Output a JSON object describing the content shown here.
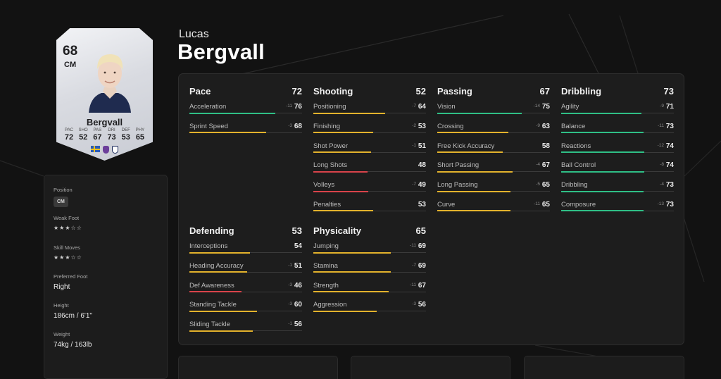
{
  "player": {
    "first_name": "Lucas",
    "last_name": "Bergvall"
  },
  "card": {
    "rating": "68",
    "position": "CM",
    "name": "Bergvall",
    "stats": [
      {
        "label": "PAC",
        "value": "72"
      },
      {
        "label": "SHO",
        "value": "52"
      },
      {
        "label": "PAS",
        "value": "67"
      },
      {
        "label": "DRI",
        "value": "73"
      },
      {
        "label": "DEF",
        "value": "53"
      },
      {
        "label": "PHY",
        "value": "65"
      }
    ],
    "icons": [
      "sweden-flag-icon",
      "premier-league-icon",
      "tottenham-crest-icon"
    ]
  },
  "info": {
    "position_label": "Position",
    "position_value": "CM",
    "weak_foot_label": "Weak Foot",
    "weak_foot_stars": "★★★☆☆",
    "skill_moves_label": "Skill Moves",
    "skill_moves_stars": "★★★☆☆",
    "preferred_foot_label": "Preferred Foot",
    "preferred_foot_value": "Right",
    "height_label": "Height",
    "height_value": "186cm / 6'1\"",
    "weight_label": "Weight",
    "weight_value": "74kg / 163lb"
  },
  "colors": {
    "green": "#2fbf86",
    "yellow": "#e3b22c",
    "red": "#d9434a",
    "track": "#3a3a3a"
  },
  "groups": [
    {
      "name": "Pace",
      "value": "72",
      "attrs": [
        {
          "name": "Acceleration",
          "delta": "-11",
          "value": 76
        },
        {
          "name": "Sprint Speed",
          "delta": "-3",
          "value": 68
        }
      ]
    },
    {
      "name": "Shooting",
      "value": "52",
      "attrs": [
        {
          "name": "Positioning",
          "delta": "-7",
          "value": 64
        },
        {
          "name": "Finishing",
          "delta": "-2",
          "value": 53
        },
        {
          "name": "Shot Power",
          "delta": "-1",
          "value": 51
        },
        {
          "name": "Long Shots",
          "delta": "",
          "value": 48
        },
        {
          "name": "Volleys",
          "delta": "-7",
          "value": 49
        },
        {
          "name": "Penalties",
          "delta": "",
          "value": 53
        }
      ]
    },
    {
      "name": "Passing",
      "value": "67",
      "attrs": [
        {
          "name": "Vision",
          "delta": "-14",
          "value": 75
        },
        {
          "name": "Crossing",
          "delta": "-9",
          "value": 63
        },
        {
          "name": "Free Kick Accuracy",
          "delta": "",
          "value": 58
        },
        {
          "name": "Short Passing",
          "delta": "-4",
          "value": 67
        },
        {
          "name": "Long Passing",
          "delta": "-5",
          "value": 65
        },
        {
          "name": "Curve",
          "delta": "-11",
          "value": 65
        }
      ]
    },
    {
      "name": "Dribbling",
      "value": "73",
      "attrs": [
        {
          "name": "Agility",
          "delta": "-9",
          "value": 71
        },
        {
          "name": "Balance",
          "delta": "-11",
          "value": 73
        },
        {
          "name": "Reactions",
          "delta": "-12",
          "value": 74
        },
        {
          "name": "Ball Control",
          "delta": "-8",
          "value": 74
        },
        {
          "name": "Dribbling",
          "delta": "-4",
          "value": 73
        },
        {
          "name": "Composure",
          "delta": "-13",
          "value": 73
        }
      ]
    },
    {
      "name": "Defending",
      "value": "53",
      "attrs": [
        {
          "name": "Interceptions",
          "delta": "",
          "value": 54
        },
        {
          "name": "Heading Accuracy",
          "delta": "-1",
          "value": 51
        },
        {
          "name": "Def Awareness",
          "delta": "-3",
          "value": 46
        },
        {
          "name": "Standing Tackle",
          "delta": "-3",
          "value": 60
        },
        {
          "name": "Sliding Tackle",
          "delta": "-1",
          "value": 56
        }
      ]
    },
    {
      "name": "Physicality",
      "value": "65",
      "attrs": [
        {
          "name": "Jumping",
          "delta": "-11",
          "value": 69
        },
        {
          "name": "Stamina",
          "delta": "-7",
          "value": 69
        },
        {
          "name": "Strength",
          "delta": "-11",
          "value": 67
        },
        {
          "name": "Aggression",
          "delta": "-3",
          "value": 56
        }
      ]
    }
  ]
}
